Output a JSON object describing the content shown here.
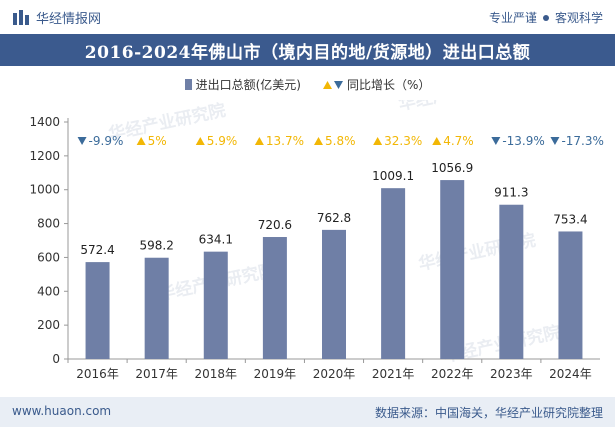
{
  "header": {
    "brand": "华经情报网",
    "tags": [
      "专业严谨",
      "客观科学"
    ]
  },
  "footer": {
    "website": "www.huaon.com",
    "source": "数据来源：中国海关，华经产业研究院整理"
  },
  "watermark_text": "华经产业研究院",
  "colors": {
    "bar": "#6f7fa6",
    "up": "#f2b705",
    "down": "#3b6b9a",
    "title_bg": "#3b5a8e"
  },
  "chart_data": {
    "type": "bar",
    "title": "2016-2024年佛山市（境内目的地/货源地）进出口总额",
    "categories": [
      "2016年",
      "2017年",
      "2018年",
      "2019年",
      "2020年",
      "2021年",
      "2022年",
      "2023年",
      "2024年"
    ],
    "series": [
      {
        "name": "进出口总额(亿美元)",
        "values": [
          572.4,
          598.2,
          634.1,
          720.6,
          762.8,
          1009.1,
          1056.9,
          911.3,
          753.4
        ],
        "value_labels": [
          "572.4",
          "598.2",
          "634.1",
          "720.6",
          "762.8",
          "1009.1",
          "1056.9",
          "911.3",
          "753.4"
        ]
      },
      {
        "name": "同比增长（%）",
        "values": [
          -9.9,
          5,
          5.9,
          13.7,
          5.8,
          32.3,
          4.7,
          -13.9,
          -17.3
        ],
        "value_labels": [
          "-9.9%",
          "5%",
          "5.9%",
          "13.7%",
          "5.8%",
          "32.3%",
          "4.7%",
          "-13.9%",
          "-17.3%"
        ]
      }
    ],
    "ylim": [
      0,
      1400
    ],
    "yticks": [
      "0",
      "200",
      "400",
      "600",
      "800",
      "1000",
      "1200",
      "1400"
    ],
    "legend_position": "top-center",
    "grid": false
  }
}
